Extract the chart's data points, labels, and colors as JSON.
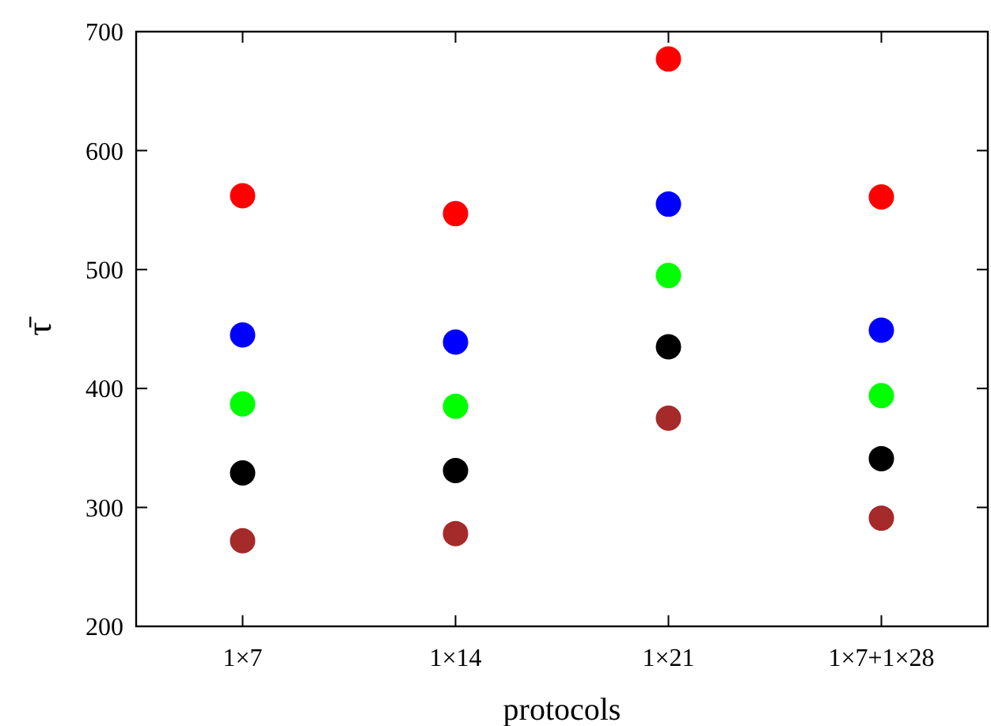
{
  "chart_data": {
    "type": "scatter",
    "xlabel": "protocols",
    "ylabel": "τ̄",
    "categories": [
      "1×7",
      "1×14",
      "1×21",
      "1×7+1×28"
    ],
    "ylim": [
      200,
      700
    ],
    "yticks": [
      200,
      300,
      400,
      500,
      600,
      700
    ],
    "marker": "circle",
    "grid": false,
    "series": [
      {
        "color": "#ff0000",
        "values": [
          562,
          547,
          677,
          561
        ]
      },
      {
        "color": "#0000ff",
        "values": [
          445,
          439,
          555,
          449
        ]
      },
      {
        "color": "#00ff00",
        "values": [
          387,
          385,
          495,
          394
        ]
      },
      {
        "color": "#000000",
        "values": [
          329,
          331,
          435,
          341
        ]
      },
      {
        "color": "#a52a2a",
        "values": [
          272,
          278,
          375,
          291
        ]
      }
    ]
  }
}
